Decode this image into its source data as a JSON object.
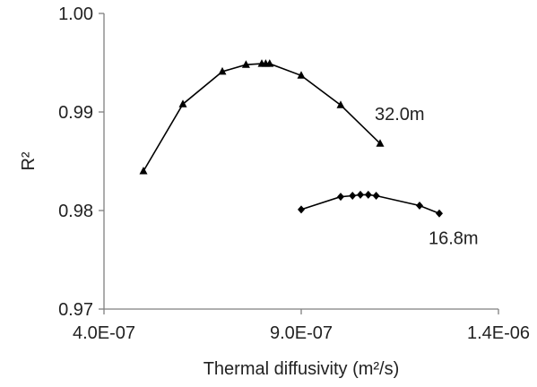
{
  "chart_data": {
    "type": "line",
    "title": "",
    "xlabel": "Thermal diffusivity (m²/s)",
    "ylabel": "R²",
    "xlim": [
      4e-07,
      1.4e-06
    ],
    "ylim": [
      0.97,
      1.0
    ],
    "x_ticks": [
      4e-07,
      9e-07,
      1.4e-06
    ],
    "x_tick_labels": [
      "4.0E-07",
      "9.0E-07",
      "1.4E-06"
    ],
    "y_ticks": [
      0.97,
      0.98,
      0.99,
      1.0
    ],
    "y_tick_labels": [
      "0.97",
      "0.98",
      "0.99",
      "1.00"
    ],
    "grid": false,
    "series": [
      {
        "name": "32.0m",
        "marker": "triangle",
        "color": "#000000",
        "x": [
          5e-07,
          6e-07,
          7e-07,
          7.6e-07,
          8e-07,
          8.1e-07,
          8.2e-07,
          9e-07,
          1e-06,
          1.1e-06
        ],
        "y": [
          0.984,
          0.9908,
          0.9941,
          0.9948,
          0.9949,
          0.9949,
          0.9949,
          0.9937,
          0.9907,
          0.9868
        ]
      },
      {
        "name": "16.8m",
        "marker": "diamond",
        "color": "#000000",
        "x": [
          9e-07,
          1e-06,
          1.03e-06,
          1.05e-06,
          1.07e-06,
          1.09e-06,
          1.2e-06,
          1.25e-06
        ],
        "y": [
          0.9801,
          0.9814,
          0.9815,
          0.9816,
          0.9816,
          0.9815,
          0.9805,
          0.9797
        ]
      }
    ]
  }
}
